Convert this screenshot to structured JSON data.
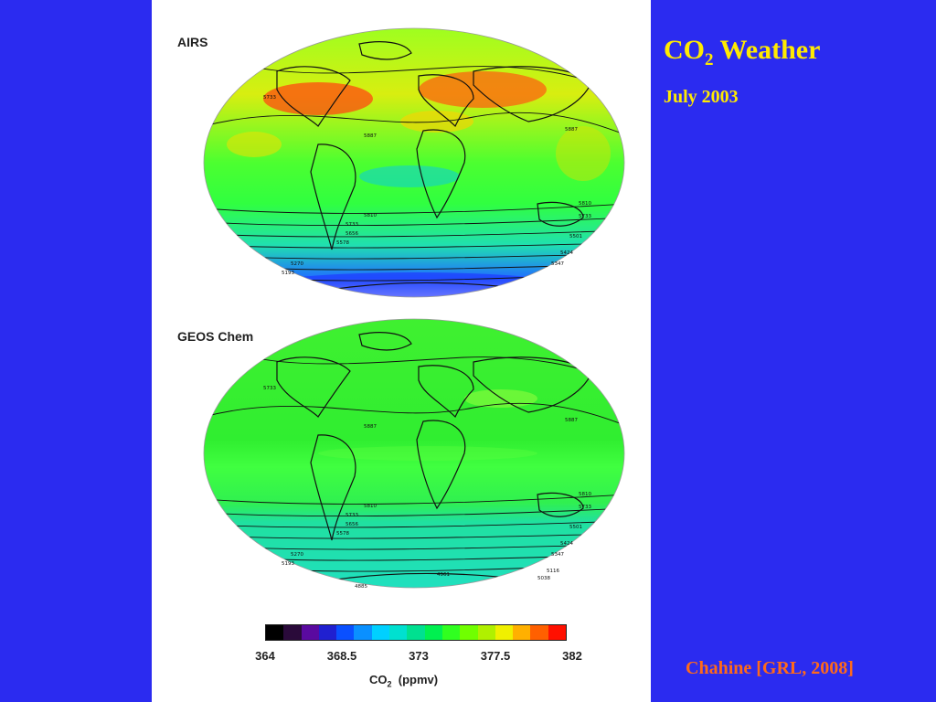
{
  "slide": {
    "title_main": "CO",
    "title_sub": "2",
    "title_rest": " Weather",
    "subtitle": "July 2003",
    "citation": "Chahine [GRL, 2008]"
  },
  "maps": [
    {
      "label": "AIRS"
    },
    {
      "label": "GEOS Chem"
    }
  ],
  "legend": {
    "ticks": [
      "364",
      "368.5",
      "373",
      "377.5",
      "382"
    ],
    "unit_main": "CO",
    "unit_sub": "2",
    "unit_rest": "  (ppmv)",
    "colors": [
      "#000000",
      "#2a0a3a",
      "#5a0aa0",
      "#2020d0",
      "#0a50ff",
      "#0a90ff",
      "#00d0ff",
      "#00e0d0",
      "#00e090",
      "#00f050",
      "#30ff20",
      "#70ff00",
      "#b0f000",
      "#f0f000",
      "#ffb000",
      "#ff6000",
      "#ff1000"
    ]
  },
  "contour_labels": [
    "5733",
    "5810",
    "5887",
    "5656",
    "5578",
    "5501",
    "5424",
    "5347",
    "5270",
    "5193",
    "5116",
    "5038",
    "4961",
    "4885"
  ],
  "colors": {
    "background": "#2b2bf0",
    "title": "#ffea00",
    "citation": "#ff6a1a",
    "panel": "#ffffff"
  }
}
